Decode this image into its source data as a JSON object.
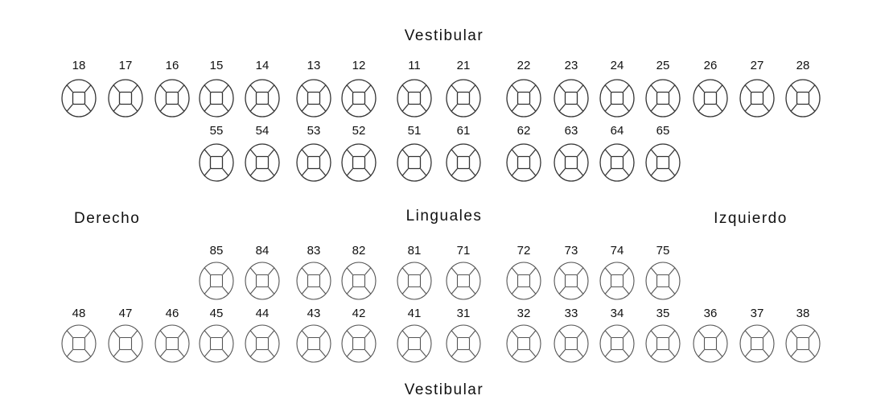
{
  "labels": {
    "top": "Vestibular",
    "middle": "Linguales",
    "bottom": "Vestibular",
    "left": "Derecho",
    "right": "Izquierdo"
  },
  "rows": [
    {
      "name": "permanent-upper",
      "teeth": [
        "18",
        "17",
        "16",
        "15",
        "14",
        "13",
        "12",
        "11",
        "21",
        "22",
        "23",
        "24",
        "25",
        "26",
        "27",
        "28"
      ]
    },
    {
      "name": "primary-upper",
      "teeth": [
        "55",
        "54",
        "53",
        "52",
        "51",
        "61",
        "62",
        "63",
        "64",
        "65"
      ]
    },
    {
      "name": "primary-lower",
      "teeth": [
        "85",
        "84",
        "83",
        "82",
        "81",
        "71",
        "72",
        "73",
        "74",
        "75"
      ]
    },
    {
      "name": "permanent-lower",
      "teeth": [
        "48",
        "47",
        "46",
        "45",
        "44",
        "43",
        "42",
        "41",
        "31",
        "32",
        "33",
        "34",
        "35",
        "36",
        "37",
        "38"
      ]
    }
  ]
}
